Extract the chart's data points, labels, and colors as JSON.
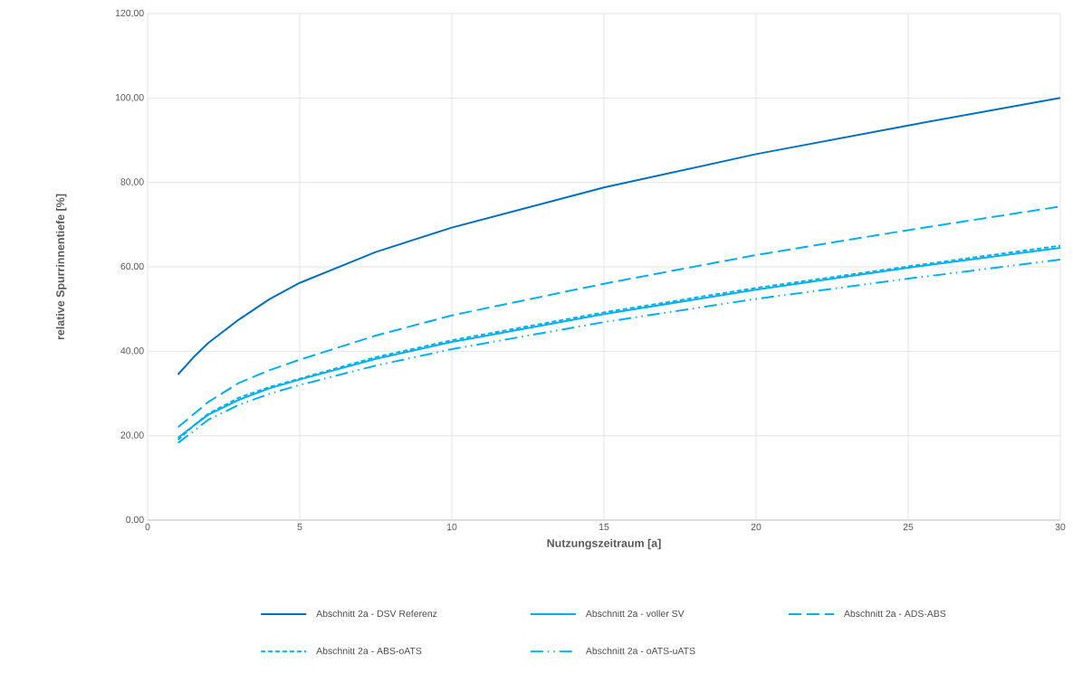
{
  "chart_data": {
    "type": "line",
    "xlabel": "Nutzungszeitraum [a]",
    "ylabel": "relative Spurrinnentiefe [%]",
    "x": [
      1,
      1.5,
      2,
      3,
      4,
      5,
      7.5,
      10,
      15,
      20,
      25,
      30
    ],
    "series": [
      {
        "name": "Abschnitt 2a - DSV Referenz",
        "color": "#0070c0",
        "line_style": "solid",
        "values": [
          34.5,
          38.5,
          42,
          47.5,
          52.3,
          56.2,
          63.5,
          69.3,
          78.8,
          86.7,
          93.5,
          100
        ]
      },
      {
        "name": "Abschnitt 2a - voller SV",
        "color": "#00b0f0",
        "line_style": "solid",
        "values": [
          19.5,
          22.3,
          25,
          28.5,
          31.2,
          33.3,
          38.2,
          42.2,
          48.8,
          54.6,
          59.8,
          64.5
        ]
      },
      {
        "name": "Abschnitt 2a - ADS-ABS",
        "color": "#00b0f0",
        "line_style": "long dashed",
        "values": [
          22,
          25,
          28,
          32.5,
          35.5,
          38,
          43.7,
          48.5,
          56,
          62.8,
          68.7,
          74.3
        ]
      },
      {
        "name": "Abschnitt 2a - ABS-oATS",
        "color": "#00b0f0",
        "line_style": "short dashed",
        "values": [
          19,
          22.3,
          25.2,
          29,
          31.5,
          33.5,
          38.6,
          42.6,
          49.2,
          55,
          60.1,
          65
        ]
      },
      {
        "name": "Abschnitt 2a - oATS-uATS",
        "color": "#00b0f0",
        "line_style": "dash dot dot",
        "values": [
          18.3,
          21,
          23.8,
          27.3,
          29.9,
          32,
          36.6,
          40.5,
          46.9,
          52.4,
          57.2,
          61.7
        ]
      }
    ],
    "xlim": [
      0,
      30
    ],
    "xticks": [
      0,
      5,
      10,
      15,
      20,
      25,
      30
    ],
    "ylim": [
      0,
      120
    ],
    "yticks": [
      {
        "value": 0,
        "label": "0,00"
      },
      {
        "value": 20,
        "label": "20,00"
      },
      {
        "value": 40,
        "label": "40,00"
      },
      {
        "value": 60,
        "label": "60,00"
      },
      {
        "value": 80,
        "label": "80,00"
      },
      {
        "value": 100,
        "label": "100,00"
      },
      {
        "value": 120,
        "label": "120,00"
      }
    ],
    "grid": true,
    "legend": "bottom",
    "marker": "none"
  }
}
